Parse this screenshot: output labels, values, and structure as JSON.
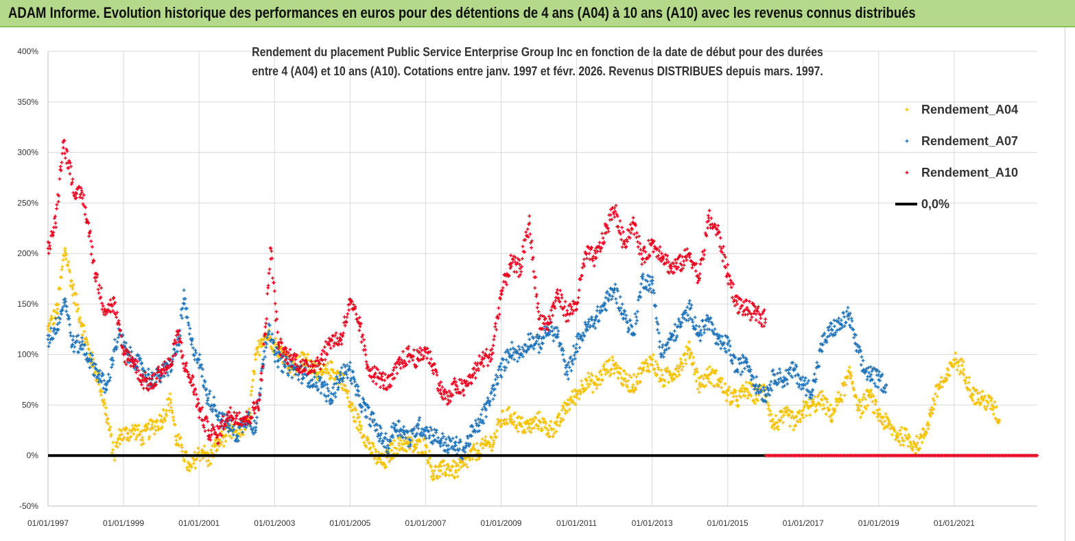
{
  "banner": {
    "title": "ADAM Informe. Evolution historique des performances en euros pour des détentions de 4 ans (A04) à 10 ans (A10) avec les revenus connus distribués"
  },
  "chart_data": {
    "type": "scatter",
    "title_lines": [
      "Rendement du placement Public Service  Enterprise Group Inc en fonction de la  date de début pour des durées",
      "entre 4 (A04) et 10 ans (A10).  Cotations entre janv. 1997 et févr. 2026. Revenus  DISTRIBUES depuis mars. 1997."
    ],
    "xlabel": "",
    "ylabel": "",
    "x_ticks": [
      "01/01/1997",
      "01/01/1999",
      "01/01/2001",
      "01/01/2003",
      "01/01/2005",
      "01/01/2007",
      "01/01/2009",
      "01/01/2011",
      "01/01/2013",
      "01/01/2015",
      "01/01/2017",
      "01/01/2019",
      "01/01/2021"
    ],
    "xlim": [
      1997.0,
      2023.2
    ],
    "y_ticks": [
      "400%",
      "350%",
      "300%",
      "250%",
      "200%",
      "150%",
      "100%",
      "50%",
      "0%",
      "-50%"
    ],
    "ylim": [
      -50,
      400
    ],
    "grid": "vertical and horizontal",
    "legend_position": "top-right",
    "series": [
      {
        "name": "Rendement_A04",
        "color": "#f5c000",
        "marker": "+",
        "x": [
          1997.0,
          1997.25,
          1997.45,
          1997.65,
          1997.9,
          1998.1,
          1998.35,
          1998.55,
          1998.75,
          1998.9,
          1999.1,
          1999.3,
          1999.5,
          1999.75,
          2000.0,
          2000.25,
          2000.4,
          2000.55,
          2000.75,
          2000.95,
          2001.1,
          2001.25,
          2001.45,
          2001.7,
          2002.0,
          2002.3,
          2002.5,
          2002.65,
          2002.8,
          2003.0,
          2003.25,
          2003.5,
          2003.75,
          2004.0,
          2004.25,
          2004.5,
          2004.8,
          2005.0,
          2005.25,
          2005.45,
          2005.65,
          2005.9,
          2006.1,
          2006.3,
          2006.5,
          2006.75,
          2007.0,
          2007.2,
          2007.4,
          2007.6,
          2007.8,
          2008.0,
          2008.2,
          2008.4,
          2008.6,
          2008.8,
          2009.0,
          2009.25,
          2009.5,
          2009.75,
          2010.0,
          2010.25,
          2010.5,
          2010.75,
          2011.0,
          2011.25,
          2011.5,
          2011.75,
          2012.0,
          2012.25,
          2012.5,
          2012.75,
          2013.0,
          2013.25,
          2013.5,
          2013.75,
          2014.0,
          2014.25,
          2014.5,
          2014.75,
          2015.0,
          2015.25,
          2015.5,
          2015.75,
          2016.0,
          2016.2,
          2016.4,
          2016.6,
          2016.8,
          2017.0,
          2017.25,
          2017.5,
          2017.75,
          2018.0,
          2018.25,
          2018.5,
          2018.75,
          2019.0,
          2019.25,
          2019.5,
          2019.75,
          2020.0,
          2020.2,
          2020.4,
          2020.6,
          2020.8,
          2021.0,
          2021.25,
          2021.5,
          2021.75,
          2022.0,
          2022.2
        ],
        "values": [
          125,
          145,
          205,
          165,
          130,
          100,
          75,
          40,
          0,
          20,
          22,
          25,
          18,
          28,
          35,
          55,
          15,
          8,
          -15,
          0,
          5,
          -5,
          10,
          20,
          25,
          30,
          95,
          115,
          120,
          110,
          100,
          85,
          95,
          90,
          80,
          85,
          75,
          50,
          30,
          15,
          0,
          -8,
          5,
          10,
          12,
          8,
          10,
          -18,
          -15,
          -12,
          -15,
          -10,
          0,
          5,
          10,
          15,
          35,
          40,
          30,
          28,
          35,
          25,
          30,
          50,
          60,
          75,
          70,
          85,
          90,
          75,
          70,
          85,
          95,
          75,
          80,
          90,
          105,
          70,
          80,
          75,
          60,
          55,
          65,
          60,
          65,
          30,
          35,
          40,
          30,
          45,
          50,
          55,
          40,
          60,
          80,
          45,
          60,
          40,
          30,
          20,
          18,
          10,
          20,
          45,
          70,
          75,
          95,
          85,
          60,
          55,
          50,
          35
        ]
      },
      {
        "name": "Rendement_A07",
        "color": "#1f73b9",
        "marker": "+",
        "x": [
          1997.0,
          1997.25,
          1997.45,
          1997.65,
          1997.9,
          1998.1,
          1998.35,
          1998.55,
          1998.75,
          1998.9,
          1999.1,
          1999.3,
          1999.5,
          1999.75,
          2000.0,
          2000.25,
          2000.45,
          2000.6,
          2000.8,
          2001.0,
          2001.2,
          2001.4,
          2001.6,
          2001.8,
          2002.0,
          2002.3,
          2002.5,
          2002.7,
          2002.85,
          2003.0,
          2003.25,
          2003.5,
          2003.75,
          2004.0,
          2004.25,
          2004.5,
          2004.75,
          2005.0,
          2005.2,
          2005.4,
          2005.6,
          2005.8,
          2006.0,
          2006.2,
          2006.4,
          2006.6,
          2006.8,
          2007.0,
          2007.2,
          2007.4,
          2007.6,
          2007.8,
          2008.0,
          2008.2,
          2008.4,
          2008.6,
          2008.8,
          2009.0,
          2009.25,
          2009.5,
          2009.75,
          2010.0,
          2010.25,
          2010.5,
          2010.75,
          2011.0,
          2011.25,
          2011.5,
          2011.75,
          2012.0,
          2012.25,
          2012.5,
          2012.75,
          2013.0,
          2013.25,
          2013.5,
          2013.75,
          2014.0,
          2014.25,
          2014.5,
          2014.75,
          2015.0,
          2015.25,
          2015.5,
          2015.75,
          2016.0,
          2016.25,
          2016.5,
          2016.75,
          2017.0,
          2017.25,
          2017.5,
          2017.75,
          2018.0,
          2018.2,
          2018.4,
          2018.6,
          2018.8,
          2019.0,
          2019.2
        ],
        "values": [
          115,
          130,
          155,
          110,
          110,
          95,
          80,
          65,
          105,
          120,
          100,
          95,
          85,
          75,
          80,
          90,
          110,
          155,
          110,
          95,
          60,
          50,
          35,
          30,
          20,
          40,
          25,
          95,
          130,
          100,
          90,
          85,
          80,
          75,
          70,
          55,
          80,
          85,
          60,
          45,
          35,
          20,
          10,
          30,
          25,
          15,
          30,
          25,
          20,
          15,
          10,
          10,
          5,
          20,
          30,
          45,
          65,
          85,
          105,
          100,
          115,
          110,
          125,
          120,
          80,
          110,
          125,
          135,
          150,
          165,
          140,
          120,
          175,
          170,
          100,
          115,
          130,
          145,
          120,
          135,
          110,
          110,
          85,
          95,
          70,
          60,
          80,
          75,
          85,
          70,
          65,
          110,
          125,
          130,
          140,
          110,
          85,
          80,
          75,
          70
        ]
      },
      {
        "name": "Rendement_A10",
        "color": "#e8001c",
        "marker": "+",
        "x": [
          1997.0,
          1997.2,
          1997.4,
          1997.55,
          1997.75,
          1997.9,
          1998.1,
          1998.25,
          1998.5,
          1998.75,
          1999.0,
          1999.25,
          1999.5,
          1999.75,
          2000.0,
          2000.25,
          2000.45,
          2000.65,
          2000.85,
          2001.0,
          2001.25,
          2001.5,
          2001.75,
          2002.0,
          2002.25,
          2002.45,
          2002.6,
          2002.75,
          2002.9,
          2003.1,
          2003.3,
          2003.55,
          2003.8,
          2004.0,
          2004.25,
          2004.5,
          2004.75,
          2005.0,
          2005.25,
          2005.45,
          2005.65,
          2005.85,
          2006.05,
          2006.3,
          2006.55,
          2006.8,
          2007.0,
          2007.2,
          2007.4,
          2007.6,
          2007.8,
          2008.0,
          2008.25,
          2008.5,
          2008.75,
          2009.0,
          2009.25,
          2009.5,
          2009.75,
          2010.0,
          2010.25,
          2010.5,
          2010.75,
          2011.0,
          2011.25,
          2011.5,
          2011.75,
          2012.0,
          2012.25,
          2012.5,
          2012.75,
          2013.0,
          2013.25,
          2013.5,
          2013.75,
          2014.0,
          2014.25,
          2014.5,
          2014.75,
          2015.0,
          2015.25,
          2015.5,
          2015.75,
          2016.0
        ],
        "values": [
          205,
          230,
          310,
          290,
          255,
          260,
          220,
          180,
          145,
          150,
          100,
          95,
          75,
          70,
          85,
          90,
          120,
          85,
          70,
          45,
          25,
          20,
          40,
          40,
          35,
          45,
          55,
          120,
          205,
          110,
          100,
          95,
          85,
          90,
          95,
          115,
          115,
          150,
          130,
          90,
          80,
          75,
          70,
          90,
          100,
          95,
          105,
          90,
          65,
          55,
          70,
          65,
          80,
          95,
          100,
          160,
          190,
          185,
          230,
          135,
          130,
          160,
          140,
          150,
          200,
          195,
          220,
          245,
          210,
          230,
          195,
          210,
          200,
          185,
          190,
          200,
          175,
          235,
          220,
          180,
          150,
          145,
          140,
          135
        ]
      },
      {
        "name": "0,0%",
        "color": "#000000",
        "type": "line",
        "x": [
          1997.0,
          2016.0
        ],
        "values": [
          0,
          0
        ]
      },
      {
        "name": "Rendement_A10 (zero tail)",
        "color": "#e8001c",
        "type": "flat-markers",
        "x": [
          2016.0,
          2023.2
        ],
        "values": [
          0,
          0
        ]
      }
    ],
    "legend": [
      "Rendement_A04",
      "Rendement_A07",
      "Rendement_A10",
      "0,0%"
    ]
  }
}
